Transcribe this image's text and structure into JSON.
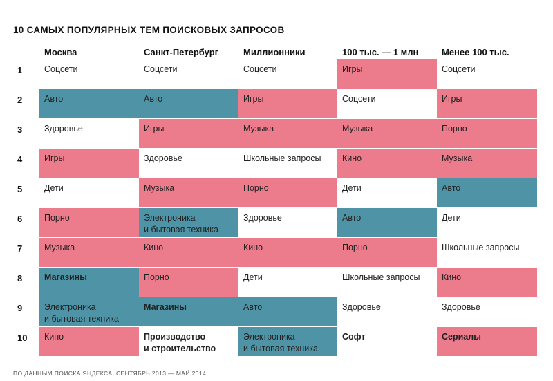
{
  "title": "10 САМЫХ ПОПУЛЯРНЫХ ТЕМ ПОИСКОВЫХ ЗАПРОСОВ",
  "columns": [
    "Москва",
    "Санкт-Петербург",
    "Миллионники",
    "100 тыс. — 1 млн",
    "Менее 100 тыс."
  ],
  "colors": {
    "pink": "#ec7b8c",
    "teal": "#4f94a6",
    "white": "#ffffff"
  },
  "rows": [
    {
      "num": "1",
      "cells": [
        {
          "text": "Соцсети",
          "color": "white",
          "bold": false
        },
        {
          "text": "Соцсети",
          "color": "white",
          "bold": false
        },
        {
          "text": "Соцсети",
          "color": "white",
          "bold": false
        },
        {
          "text": "Игры",
          "color": "pink",
          "bold": false
        },
        {
          "text": "Соцсети",
          "color": "white",
          "bold": false
        }
      ]
    },
    {
      "num": "2",
      "cells": [
        {
          "text": "Авто",
          "color": "teal",
          "bold": false
        },
        {
          "text": "Авто",
          "color": "teal",
          "bold": false
        },
        {
          "text": "Игры",
          "color": "pink",
          "bold": false
        },
        {
          "text": "Соцсети",
          "color": "white",
          "bold": false
        },
        {
          "text": "Игры",
          "color": "pink",
          "bold": false
        }
      ]
    },
    {
      "num": "3",
      "cells": [
        {
          "text": "Здоровье",
          "color": "white",
          "bold": false
        },
        {
          "text": "Игры",
          "color": "pink",
          "bold": false
        },
        {
          "text": "Музыка",
          "color": "pink",
          "bold": false
        },
        {
          "text": "Музыка",
          "color": "pink",
          "bold": false
        },
        {
          "text": "Порно",
          "color": "pink",
          "bold": false
        }
      ]
    },
    {
      "num": "4",
      "cells": [
        {
          "text": "Игры",
          "color": "pink",
          "bold": false
        },
        {
          "text": "Здоровье",
          "color": "white",
          "bold": false
        },
        {
          "text": "Школьные запросы",
          "color": "white",
          "bold": false
        },
        {
          "text": "Кино",
          "color": "pink",
          "bold": false
        },
        {
          "text": "Музыка",
          "color": "pink",
          "bold": false
        }
      ]
    },
    {
      "num": "5",
      "cells": [
        {
          "text": "Дети",
          "color": "white",
          "bold": false
        },
        {
          "text": "Музыка",
          "color": "pink",
          "bold": false
        },
        {
          "text": "Порно",
          "color": "pink",
          "bold": false
        },
        {
          "text": "Дети",
          "color": "white",
          "bold": false
        },
        {
          "text": "Авто",
          "color": "teal",
          "bold": false
        }
      ]
    },
    {
      "num": "6",
      "cells": [
        {
          "text": "Порно",
          "color": "pink",
          "bold": false
        },
        {
          "text": "Электроника\nи бытовая техника",
          "color": "teal",
          "bold": false
        },
        {
          "text": "Здоровье",
          "color": "white",
          "bold": false
        },
        {
          "text": "Авто",
          "color": "teal",
          "bold": false
        },
        {
          "text": "Дети",
          "color": "white",
          "bold": false
        }
      ]
    },
    {
      "num": "7",
      "cells": [
        {
          "text": "Музыка",
          "color": "pink",
          "bold": false
        },
        {
          "text": "Кино",
          "color": "pink",
          "bold": false
        },
        {
          "text": "Кино",
          "color": "pink",
          "bold": false
        },
        {
          "text": "Порно",
          "color": "pink",
          "bold": false
        },
        {
          "text": "Школьные запросы",
          "color": "white",
          "bold": false
        }
      ]
    },
    {
      "num": "8",
      "cells": [
        {
          "text": "Магазины",
          "color": "teal",
          "bold": true
        },
        {
          "text": "Порно",
          "color": "pink",
          "bold": false
        },
        {
          "text": "Дети",
          "color": "white",
          "bold": false
        },
        {
          "text": "Школьные запросы",
          "color": "white",
          "bold": false
        },
        {
          "text": "Кино",
          "color": "pink",
          "bold": false
        }
      ]
    },
    {
      "num": "9",
      "cells": [
        {
          "text": "Электроника\nи бытовая техника",
          "color": "teal",
          "bold": false
        },
        {
          "text": "Магазины",
          "color": "teal",
          "bold": true
        },
        {
          "text": "Авто",
          "color": "teal",
          "bold": false
        },
        {
          "text": "Здоровье",
          "color": "white",
          "bold": false
        },
        {
          "text": "Здоровье",
          "color": "white",
          "bold": false
        }
      ]
    },
    {
      "num": "10",
      "cells": [
        {
          "text": "Кино",
          "color": "pink",
          "bold": false
        },
        {
          "text": "Производство\nи строительство",
          "color": "white",
          "bold": true
        },
        {
          "text": "Электроника\nи бытовая техника",
          "color": "teal",
          "bold": false
        },
        {
          "text": "Софт",
          "color": "white",
          "bold": true
        },
        {
          "text": "Сериалы",
          "color": "pink",
          "bold": true
        }
      ]
    }
  ],
  "footer": "ПО ДАННЫМ ПОИСКА ЯНДЕКСА, СЕНТЯБРЬ 2013 — МАЙ 2014"
}
